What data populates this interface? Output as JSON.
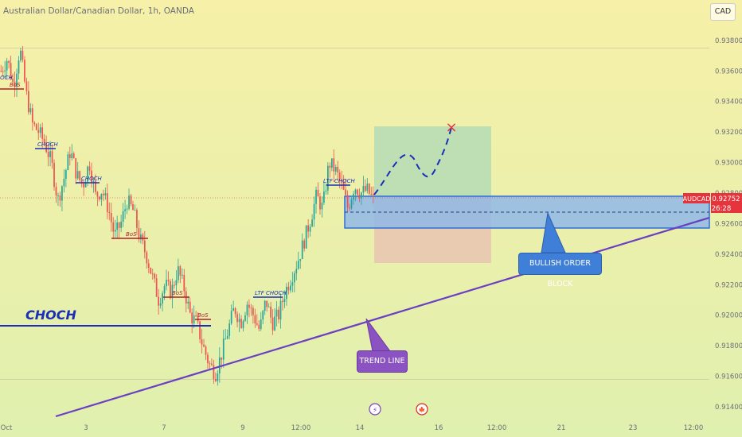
{
  "header": {
    "title": "Australian Dollar/Canadian Dollar, 1h, OANDA"
  },
  "currency_button": {
    "label": "CAD"
  },
  "price_tag": {
    "symbol": "AUDCAD",
    "price": "0.92752",
    "countdown": "26:28",
    "color": "#e5343c"
  },
  "annotations": {
    "choch_big": "CHOCH",
    "choch_1": "CHOCH",
    "choch_2": "CHOCH",
    "choch_left": "CHOCH",
    "bos_1": "BoS",
    "bos_2": "BoS",
    "bos_3": "BoS",
    "bos_4": "BoS",
    "ltf_choch_1": "LTF CHOCH",
    "ltf_choch_2": "LTF CHOCH",
    "bullish_order_block": "BULLISH ORDER BLOCK",
    "trend_line": "TREND LINE",
    "target_marker": "×"
  },
  "event_icons": {
    "lightning": "⚡",
    "canada_flag": "🍁"
  },
  "colors": {
    "background_top": "#f6f0a8",
    "background_bottom": "#e0f0ae",
    "up": "#26a69a",
    "down": "#ef5350",
    "order_block_fill": "#8fb9e8",
    "order_block_border": "#2f6fd6",
    "profit_zone": "#b8ddb5",
    "loss_zone": "#e8c6b0",
    "trend_line": "#6a3fc3",
    "annotation_blue": "#1a2fb8",
    "annotation_red": "#b31d2a"
  },
  "chart_data": {
    "type": "candlestick",
    "instrument": "AUDCAD",
    "timeframe": "1h",
    "y_axis": {
      "min": 0.914,
      "max": 0.9382,
      "side": "right",
      "ticks": [
        "0.93800",
        "0.93600",
        "0.93400",
        "0.93200",
        "0.93000",
        "0.92800",
        "0.92600",
        "0.92400",
        "0.92200",
        "0.92000",
        "0.91800",
        "0.91600",
        "0.91400"
      ]
    },
    "x_axis": {
      "ticks": [
        "Oct",
        "3",
        "7",
        "9",
        "12:00",
        "14",
        "16",
        "12:00",
        "21",
        "23",
        "12:00"
      ]
    },
    "current_price": 0.92752,
    "trend_line": {
      "from_price": 0.9113,
      "to_price": 0.9261
    },
    "order_block": {
      "top": 0.9275,
      "bottom": 0.9257
    },
    "long_position": {
      "take_profit": 0.9323,
      "entry": 0.9275,
      "stop_loss": 0.9234
    },
    "levels": {
      "choch": 0.9193,
      "high": 0.9375,
      "low": 0.9158
    },
    "path_waypoints": [
      0.936,
      0.9368,
      0.935,
      0.9375,
      0.9345,
      0.9325,
      0.932,
      0.9312,
      0.93,
      0.9275,
      0.929,
      0.9308,
      0.9292,
      0.9285,
      0.93,
      0.9278,
      0.9282,
      0.927,
      0.9252,
      0.926,
      0.9275,
      0.9268,
      0.925,
      0.924,
      0.9225,
      0.921,
      0.922,
      0.9215,
      0.923,
      0.9218,
      0.92,
      0.9195,
      0.918,
      0.9168,
      0.9162,
      0.9175,
      0.919,
      0.9205,
      0.9195,
      0.9208,
      0.92,
      0.919,
      0.921,
      0.9195,
      0.92,
      0.9215,
      0.9225,
      0.9235,
      0.9248,
      0.9262,
      0.9278,
      0.927,
      0.93,
      0.9295,
      0.9285,
      0.927,
      0.9285,
      0.928,
      0.9282,
      0.9276
    ]
  }
}
